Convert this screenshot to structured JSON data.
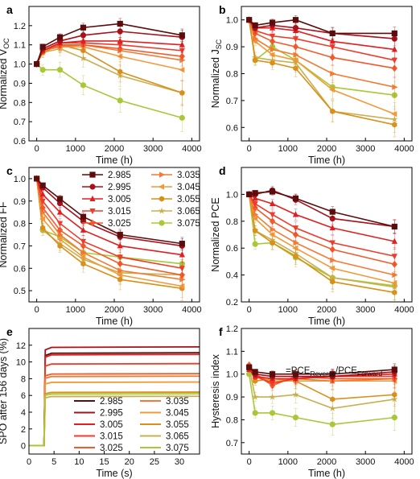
{
  "colors": {
    "2.985": "#5c0c0c",
    "2.995": "#a8101a",
    "3.005": "#e02020",
    "3.015": "#f03a2a",
    "3.025": "#f25a2a",
    "3.035": "#f47a35",
    "3.045": "#f29a38",
    "3.055": "#d8901a",
    "3.065": "#c8b050",
    "3.075": "#a8c838"
  },
  "chart_data": [
    {
      "panel": "a",
      "type": "line",
      "xlabel": "Time (h)",
      "ylabel": "Normalized V",
      "ylabel_sub": "OC",
      "xlim": [
        -200,
        4200
      ],
      "ylim": [
        0.6,
        1.3
      ],
      "xticks": [
        "0",
        "1000",
        "2000",
        "3000",
        "4000"
      ],
      "yticks": [
        "0.6",
        "0.7",
        "0.8",
        "0.9",
        "1.0",
        "1.1",
        "1.2"
      ],
      "x": [
        0,
        156,
        600,
        1200,
        2150,
        3750
      ],
      "series": [
        {
          "name": "2.985",
          "marker": "square",
          "values": [
            1.0,
            1.09,
            1.14,
            1.19,
            1.21,
            1.15
          ]
        },
        {
          "name": "2.995",
          "marker": "circle",
          "values": [
            1.0,
            1.08,
            1.12,
            1.15,
            1.17,
            1.14
          ]
        },
        {
          "name": "3.005",
          "marker": "triangle",
          "values": [
            1.0,
            1.07,
            1.11,
            1.12,
            1.12,
            1.1
          ]
        },
        {
          "name": "3.015",
          "marker": "tridown",
          "values": [
            1.0,
            1.07,
            1.11,
            1.11,
            1.1,
            1.07
          ]
        },
        {
          "name": "3.025",
          "marker": "diamond",
          "values": [
            1.0,
            1.07,
            1.1,
            1.1,
            1.08,
            1.04
          ]
        },
        {
          "name": "3.035",
          "marker": "triright",
          "values": [
            1.0,
            1.07,
            1.09,
            1.1,
            1.07,
            1.02
          ]
        },
        {
          "name": "3.045",
          "marker": "trileft",
          "values": [
            1.0,
            1.07,
            1.09,
            1.09,
            1.04,
            0.97
          ]
        },
        {
          "name": "3.055",
          "marker": "hexagon",
          "values": [
            1.0,
            1.06,
            1.1,
            1.07,
            0.96,
            0.85
          ]
        },
        {
          "name": "3.065",
          "marker": "star",
          "values": [
            1.0,
            1.06,
            1.08,
            1.03,
            0.94,
            0.85
          ]
        },
        {
          "name": "3.075",
          "marker": "circle",
          "values": [
            1.0,
            0.97,
            0.97,
            0.89,
            0.81,
            0.72
          ]
        }
      ]
    },
    {
      "panel": "b",
      "type": "line",
      "xlabel": "Time (h)",
      "ylabel": "Normalized J",
      "ylabel_sub": "SC",
      "xlim": [
        -200,
        4200
      ],
      "ylim": [
        0.55,
        1.05
      ],
      "xticks": [
        "0",
        "1000",
        "2000",
        "3000",
        "4000"
      ],
      "yticks": [
        "0.6",
        "0.7",
        "0.8",
        "0.9",
        "1.0"
      ],
      "x": [
        0,
        156,
        600,
        1200,
        2150,
        3750
      ],
      "series": [
        {
          "name": "2.985",
          "marker": "square",
          "values": [
            1.0,
            0.98,
            0.99,
            1.0,
            0.95,
            0.95
          ]
        },
        {
          "name": "2.995",
          "marker": "circle",
          "values": [
            1.0,
            0.97,
            0.98,
            0.97,
            0.95,
            0.93
          ]
        },
        {
          "name": "3.005",
          "marker": "triangle",
          "values": [
            1.0,
            0.97,
            0.97,
            0.96,
            0.92,
            0.89
          ]
        },
        {
          "name": "3.015",
          "marker": "tridown",
          "values": [
            1.0,
            0.96,
            0.94,
            0.93,
            0.9,
            0.85
          ]
        },
        {
          "name": "3.025",
          "marker": "diamond",
          "values": [
            1.0,
            0.95,
            0.92,
            0.9,
            0.86,
            0.82
          ]
        },
        {
          "name": "3.035",
          "marker": "triright",
          "values": [
            1.0,
            0.93,
            0.89,
            0.87,
            0.8,
            0.75
          ]
        },
        {
          "name": "3.045",
          "marker": "trileft",
          "values": [
            1.0,
            0.92,
            0.87,
            0.85,
            0.74,
            0.65
          ]
        },
        {
          "name": "3.055",
          "marker": "hexagon",
          "values": [
            1.0,
            0.85,
            0.84,
            0.82,
            0.66,
            0.61
          ]
        },
        {
          "name": "3.065",
          "marker": "star",
          "values": [
            1.0,
            0.86,
            0.85,
            0.84,
            0.66,
            0.63
          ]
        },
        {
          "name": "3.075",
          "marker": "circle",
          "values": [
            1.0,
            0.85,
            0.9,
            0.85,
            0.75,
            0.72
          ]
        }
      ]
    },
    {
      "panel": "c",
      "type": "line",
      "xlabel": "Time (h)",
      "ylabel": "Normalized FF",
      "xlim": [
        -200,
        4200
      ],
      "ylim": [
        0.45,
        1.05
      ],
      "xticks": [
        "0",
        "1000",
        "2000",
        "3000",
        "4000"
      ],
      "yticks": [
        "0.5",
        "0.6",
        "0.7",
        "0.8",
        "0.9",
        "1.0"
      ],
      "x": [
        0,
        156,
        600,
        1200,
        2150,
        3750
      ],
      "series": [
        {
          "name": "2.985",
          "marker": "square",
          "values": [
            1.0,
            0.97,
            0.91,
            0.83,
            0.75,
            0.71
          ]
        },
        {
          "name": "2.995",
          "marker": "circle",
          "values": [
            1.0,
            0.96,
            0.89,
            0.81,
            0.74,
            0.7
          ]
        },
        {
          "name": "3.005",
          "marker": "triangle",
          "values": [
            1.0,
            0.93,
            0.85,
            0.77,
            0.7,
            0.66
          ]
        },
        {
          "name": "3.015",
          "marker": "tridown",
          "values": [
            1.0,
            0.9,
            0.8,
            0.72,
            0.65,
            0.6
          ]
        },
        {
          "name": "3.025",
          "marker": "diamond",
          "values": [
            1.0,
            0.87,
            0.77,
            0.7,
            0.62,
            0.57
          ]
        },
        {
          "name": "3.035",
          "marker": "triright",
          "values": [
            1.0,
            0.85,
            0.75,
            0.67,
            0.59,
            0.55
          ]
        },
        {
          "name": "3.045",
          "marker": "trileft",
          "values": [
            1.0,
            0.82,
            0.73,
            0.65,
            0.57,
            0.52
          ]
        },
        {
          "name": "3.055",
          "marker": "hexagon",
          "values": [
            1.0,
            0.78,
            0.7,
            0.62,
            0.55,
            0.51
          ]
        },
        {
          "name": "3.065",
          "marker": "star",
          "values": [
            1.0,
            0.77,
            0.71,
            0.64,
            0.58,
            0.57
          ]
        },
        {
          "name": "3.075",
          "marker": "circle",
          "values": [
            1.0,
            0.77,
            0.74,
            0.67,
            0.65,
            0.62
          ]
        }
      ],
      "legend": {
        "columns": 2,
        "placement": "top-right"
      }
    },
    {
      "panel": "d",
      "type": "line",
      "xlabel": "Time (h)",
      "ylabel": "Normalized PCE",
      "xlim": [
        -200,
        4200
      ],
      "ylim": [
        0.2,
        1.2
      ],
      "xticks": [
        "0",
        "1000",
        "2000",
        "3000",
        "4000"
      ],
      "yticks": [
        "0.2",
        "0.4",
        "0.6",
        "0.8",
        "1.0"
      ],
      "x": [
        0,
        156,
        600,
        1200,
        2150,
        3750
      ],
      "series": [
        {
          "name": "2.985",
          "marker": "square",
          "values": [
            1.0,
            1.01,
            1.02,
            0.97,
            0.87,
            0.76
          ]
        },
        {
          "name": "2.995",
          "marker": "circle",
          "values": [
            1.0,
            1.0,
            1.03,
            0.96,
            0.82,
            0.76
          ]
        },
        {
          "name": "3.005",
          "marker": "triangle",
          "values": [
            1.0,
            0.97,
            0.93,
            0.85,
            0.75,
            0.65
          ]
        },
        {
          "name": "3.015",
          "marker": "tridown",
          "values": [
            1.0,
            0.93,
            0.85,
            0.75,
            0.64,
            0.54
          ]
        },
        {
          "name": "3.025",
          "marker": "diamond",
          "values": [
            1.0,
            0.9,
            0.8,
            0.7,
            0.59,
            0.48
          ]
        },
        {
          "name": "3.035",
          "marker": "triright",
          "values": [
            1.0,
            0.85,
            0.74,
            0.64,
            0.51,
            0.4
          ]
        },
        {
          "name": "3.045",
          "marker": "trileft",
          "values": [
            1.0,
            0.82,
            0.7,
            0.6,
            0.45,
            0.34
          ]
        },
        {
          "name": "3.055",
          "marker": "hexagon",
          "values": [
            1.0,
            0.73,
            0.64,
            0.54,
            0.35,
            0.27
          ]
        },
        {
          "name": "3.065",
          "marker": "star",
          "values": [
            1.0,
            0.73,
            0.66,
            0.56,
            0.38,
            0.31
          ]
        },
        {
          "name": "3.075",
          "marker": "circle",
          "values": [
            1.0,
            0.63,
            0.64,
            0.53,
            0.38,
            0.32
          ]
        }
      ]
    },
    {
      "panel": "e",
      "type": "line",
      "xlabel": "Time (s)",
      "ylabel": "SPO after 156 days (%)",
      "xlim": [
        0,
        34
      ],
      "ylim": [
        -1,
        14
      ],
      "xticks": [
        "0",
        "5",
        "10",
        "15",
        "20",
        "25",
        "30"
      ],
      "yticks": [
        "0",
        "2",
        "4",
        "6",
        "8",
        "10",
        "12"
      ],
      "step_time_s": 3,
      "series": [
        {
          "name": "2.985",
          "plateau": 11.1
        },
        {
          "name": "2.995",
          "plateau": 11.8
        },
        {
          "name": "3.005",
          "plateau": 10.9
        },
        {
          "name": "3.015",
          "plateau": 9.8
        },
        {
          "name": "3.025",
          "plateau": 8.6
        },
        {
          "name": "3.035",
          "plateau": 8.3
        },
        {
          "name": "3.045",
          "plateau": 7.6
        },
        {
          "name": "3.055",
          "plateau": 6.4
        },
        {
          "name": "3.065",
          "plateau": 5.9
        },
        {
          "name": "3.075",
          "plateau": 6.2
        }
      ],
      "legend": {
        "columns": 2,
        "placement": "bottom-center"
      }
    },
    {
      "panel": "f",
      "type": "line",
      "xlabel": "Time (h)",
      "ylabel": "Hysteresis index",
      "annotation_prefix": "=PCE",
      "annotation_num": "Reverse",
      "annotation_div": "/PCE",
      "annotation_den": "Forward",
      "xlim": [
        -200,
        4200
      ],
      "ylim": [
        0.65,
        1.2
      ],
      "xticks": [
        "0",
        "1000",
        "2000",
        "3000",
        "4000"
      ],
      "yticks": [
        "0.7",
        "0.8",
        "0.9",
        "1.0",
        "1.1",
        "1.2"
      ],
      "x": [
        0,
        156,
        600,
        1200,
        2150,
        3750
      ],
      "series": [
        {
          "name": "2.985",
          "marker": "square",
          "values": [
            1.03,
            1.01,
            1.0,
            1.0,
            1.0,
            1.02
          ]
        },
        {
          "name": "2.995",
          "marker": "circle",
          "values": [
            1.03,
            1.0,
            0.99,
            0.99,
            0.99,
            1.01
          ]
        },
        {
          "name": "3.005",
          "marker": "triangle",
          "values": [
            1.02,
            0.99,
            0.98,
            0.98,
            0.99,
            1.0
          ]
        },
        {
          "name": "3.015",
          "marker": "tridown",
          "values": [
            1.02,
            0.99,
            0.96,
            0.98,
            0.99,
            0.99
          ]
        },
        {
          "name": "3.025",
          "marker": "diamond",
          "values": [
            1.04,
            1.0,
            0.95,
            0.99,
            0.98,
            0.98
          ]
        },
        {
          "name": "3.035",
          "marker": "triright",
          "values": [
            1.03,
            1.0,
            0.96,
            0.98,
            0.97,
            0.98
          ]
        },
        {
          "name": "3.045",
          "marker": "trileft",
          "values": [
            1.03,
            0.99,
            0.97,
            0.97,
            0.97,
            0.97
          ]
        },
        {
          "name": "3.055",
          "marker": "hexagon",
          "values": [
            1.03,
            0.97,
            0.98,
            0.97,
            0.89,
            0.91
          ]
        },
        {
          "name": "3.065",
          "marker": "star",
          "values": [
            1.03,
            0.9,
            0.9,
            0.91,
            0.85,
            0.89
          ]
        },
        {
          "name": "3.075",
          "marker": "circle",
          "values": [
            1.0,
            0.83,
            0.83,
            0.81,
            0.78,
            0.81
          ]
        }
      ]
    }
  ]
}
